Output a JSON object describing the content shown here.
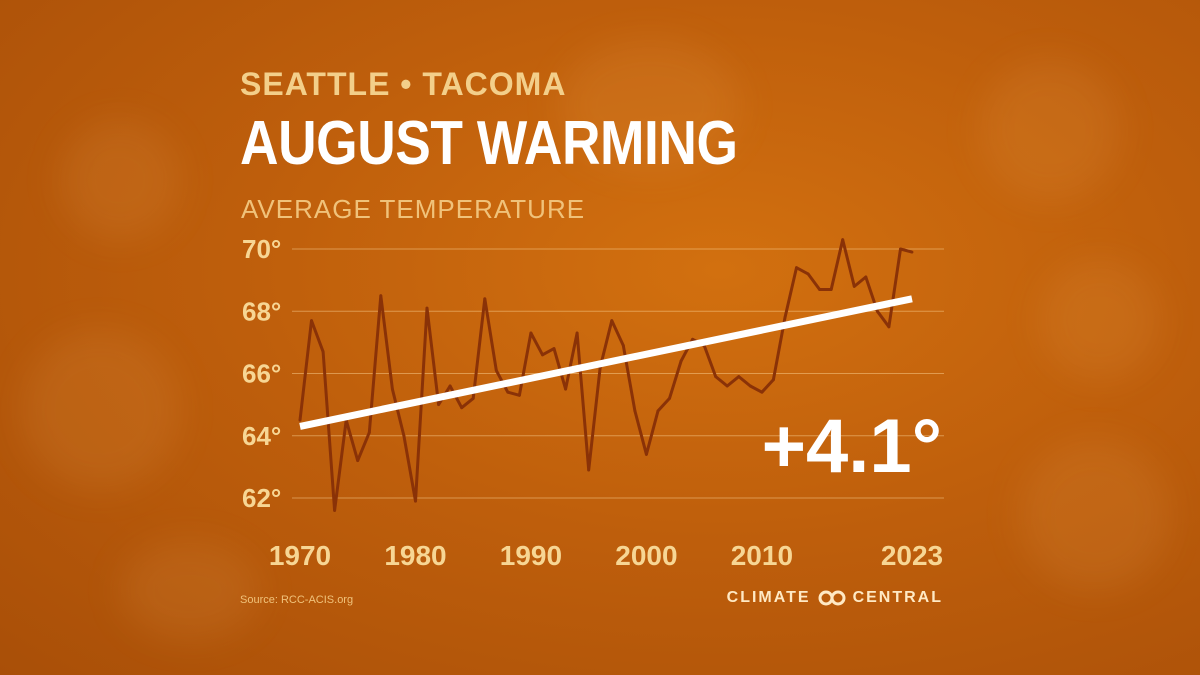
{
  "header": {
    "location": "SEATTLE • TACOMA",
    "title": "AUGUST WARMING",
    "measure": "AVERAGE TEMPERATURE"
  },
  "chart_data": {
    "type": "line",
    "title": "AUGUST WARMING",
    "ylabel": "AVERAGE TEMPERATURE",
    "ylim": [
      61.5,
      70.5
    ],
    "xlim": [
      1970,
      2023
    ],
    "y_ticks": [
      62,
      64,
      66,
      68,
      70
    ],
    "y_tick_labels": [
      "62°",
      "64°",
      "66°",
      "68°",
      "70°"
    ],
    "x_tick_values": [
      1970,
      1980,
      1990,
      2000,
      2010,
      2023
    ],
    "x_tick_labels": [
      "1970",
      "1980",
      "1990",
      "2000",
      "2010",
      "2023"
    ],
    "grid": true,
    "series": [
      {
        "color": "#8a3207",
        "x": [
          1970,
          1971,
          1972,
          1973,
          1974,
          1975,
          1976,
          1977,
          1978,
          1979,
          1980,
          1981,
          1982,
          1983,
          1984,
          1985,
          1986,
          1987,
          1988,
          1989,
          1990,
          1991,
          1992,
          1993,
          1994,
          1995,
          1996,
          1997,
          1998,
          1999,
          2000,
          2001,
          2002,
          2003,
          2004,
          2005,
          2006,
          2007,
          2008,
          2009,
          2010,
          2011,
          2012,
          2013,
          2014,
          2015,
          2016,
          2017,
          2018,
          2019,
          2020,
          2021,
          2022,
          2023
        ],
        "y": [
          64.5,
          67.7,
          66.7,
          61.6,
          64.5,
          63.2,
          64.1,
          68.5,
          65.5,
          64.0,
          61.9,
          68.1,
          65.0,
          65.6,
          64.9,
          65.2,
          68.4,
          66.1,
          65.4,
          65.3,
          67.3,
          66.6,
          66.8,
          65.5,
          67.3,
          62.9,
          66.2,
          67.7,
          66.9,
          64.8,
          63.4,
          64.8,
          65.2,
          66.4,
          67.1,
          66.9,
          65.9,
          65.6,
          65.9,
          65.6,
          65.4,
          65.8,
          67.8,
          69.4,
          69.2,
          68.7,
          68.7,
          70.3,
          68.8,
          69.1,
          68.0,
          67.5,
          70.0,
          69.9
        ]
      },
      {
        "color": "#ffffff",
        "x": [
          1970,
          2023
        ],
        "y": [
          64.3,
          68.4
        ]
      }
    ],
    "annotation": "+4.1°"
  },
  "footer": {
    "source": "Source: RCC-ACIS.org",
    "brand_left": "CLIMATE",
    "brand_right": "CENTRAL",
    "brand_icon": "climate-central-logo-icon"
  }
}
